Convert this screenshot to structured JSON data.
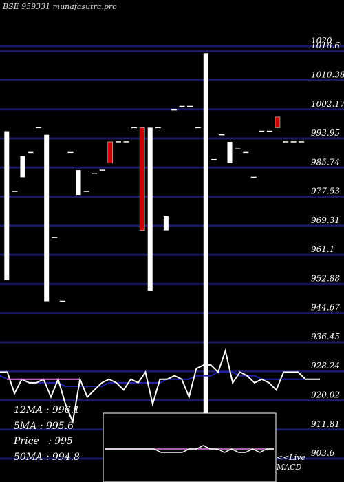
{
  "header": {
    "title": "BSE 959331 munafasutra.pro"
  },
  "stats": {
    "ma12": "12MA : 996.1",
    "ma5": "5MA : 995.6",
    "price": "Price   : 995",
    "ma50": "50MA : 994.8"
  },
  "macd": {
    "line1": "<<Live",
    "line2": "MACD"
  },
  "colors": {
    "background": "#000000",
    "grid": "#1a1a66",
    "candle_up": "#ffffff",
    "candle_down": "#cc0000",
    "ma_short": "#ffffff",
    "ma_long": "#2222aa",
    "ma_signal": "#e080e0"
  },
  "chart_data": {
    "type": "candlestick",
    "y_ticks": [
      1020,
      1018.6,
      1010.38,
      1002.17,
      993.95,
      985.74,
      977.53,
      969.31,
      961.1,
      952.88,
      944.67,
      936.45,
      928.24,
      920.02,
      911.81,
      903.6
    ],
    "y_tick_labels": [
      "1020",
      "1018.6",
      "1010.38",
      "1002.17",
      "993.95",
      "985.74",
      "977.53",
      "969.31",
      "961.1",
      "952.88",
      "944.67",
      "936.45",
      "928.24",
      "920.02",
      "911.81",
      "903.6"
    ],
    "ylim": [
      903.6,
      1020
    ],
    "candles": [
      {
        "open": 996,
        "close": 954,
        "color": "white"
      },
      {
        "open": 979,
        "close": 979,
        "color": "white"
      },
      {
        "open": 989,
        "close": 983,
        "color": "white"
      },
      {
        "open": 990,
        "close": 990,
        "color": "white"
      },
      {
        "open": 997,
        "close": 997,
        "color": "white"
      },
      {
        "open": 995,
        "close": 948,
        "color": "white"
      },
      {
        "open": 966,
        "close": 966,
        "color": "white"
      },
      {
        "open": 948,
        "close": 948,
        "color": "white"
      },
      {
        "open": 990,
        "close": 990,
        "color": "white"
      },
      {
        "open": 985,
        "close": 978,
        "color": "white"
      },
      {
        "open": 979,
        "close": 979,
        "color": "white"
      },
      {
        "open": 984,
        "close": 984,
        "color": "white"
      },
      {
        "open": 985,
        "close": 985,
        "color": "white"
      },
      {
        "open": 987,
        "close": 993,
        "color": "red"
      },
      {
        "open": 993,
        "close": 993,
        "color": "white"
      },
      {
        "open": 993,
        "close": 993,
        "color": "white"
      },
      {
        "open": 997,
        "close": 997,
        "color": "white"
      },
      {
        "open": 968,
        "close": 997,
        "color": "red"
      },
      {
        "open": 997,
        "close": 951,
        "color": "white"
      },
      {
        "open": 997,
        "close": 997,
        "color": "white"
      },
      {
        "open": 972,
        "close": 968,
        "color": "white"
      },
      {
        "open": 1002,
        "close": 1002,
        "color": "white"
      },
      {
        "open": 1003,
        "close": 1003,
        "color": "white"
      },
      {
        "open": 1003,
        "close": 1003,
        "color": "white"
      },
      {
        "open": 997,
        "close": 997,
        "color": "white"
      },
      {
        "open": 1018,
        "close": 910,
        "color": "white"
      },
      {
        "open": 988,
        "close": 988,
        "color": "white"
      },
      {
        "open": 995,
        "close": 995,
        "color": "white"
      },
      {
        "open": 993,
        "close": 987,
        "color": "white"
      },
      {
        "open": 991,
        "close": 991,
        "color": "white"
      },
      {
        "open": 990,
        "close": 990,
        "color": "white"
      },
      {
        "open": 983,
        "close": 983,
        "color": "white"
      },
      {
        "open": 996,
        "close": 996,
        "color": "white"
      },
      {
        "open": 996,
        "close": 996,
        "color": "white"
      },
      {
        "open": 997,
        "close": 1000,
        "color": "red"
      },
      {
        "open": 993,
        "close": 993,
        "color": "white"
      },
      {
        "open": 993,
        "close": 993,
        "color": "white"
      },
      {
        "open": 993,
        "close": 993,
        "color": "white"
      }
    ],
    "price_line": [
      928,
      928,
      922,
      926,
      925,
      925,
      926,
      921,
      926,
      919,
      914,
      926,
      921,
      923,
      925,
      926,
      925,
      923,
      926,
      925,
      928,
      919,
      926,
      926,
      927,
      926,
      921,
      929,
      930,
      930,
      928,
      934,
      925,
      928,
      927,
      925,
      926,
      925,
      923,
      928,
      928,
      928,
      926,
      926,
      926
    ],
    "ma_long": [
      927,
      926,
      926,
      926,
      925,
      925,
      925,
      925,
      925,
      924,
      924,
      924,
      924,
      924,
      924,
      925,
      925,
      925,
      925,
      925,
      925,
      925,
      925,
      926,
      926,
      926,
      926,
      927,
      927,
      927,
      928,
      928,
      928,
      927,
      927,
      927,
      926,
      926,
      926,
      926,
      926,
      926,
      926,
      926,
      926
    ],
    "ma_signal": [
      926,
      926,
      926,
      926,
      926,
      926,
      926,
      926,
      926,
      926,
      926,
      926,
      926,
      926
    ],
    "macd_line": [
      0,
      0,
      0,
      0,
      0,
      0,
      0,
      0,
      -1,
      -1,
      -1,
      -1,
      0,
      0,
      1,
      0,
      0,
      -1,
      0,
      -1,
      -1,
      0,
      -1,
      0,
      0
    ],
    "macd_signal": [
      0,
      0,
      0,
      0,
      0,
      0,
      0,
      0,
      0,
      0,
      0,
      0,
      0,
      0,
      0,
      0,
      0,
      0,
      0,
      0,
      0,
      0,
      0,
      0,
      0
    ]
  }
}
